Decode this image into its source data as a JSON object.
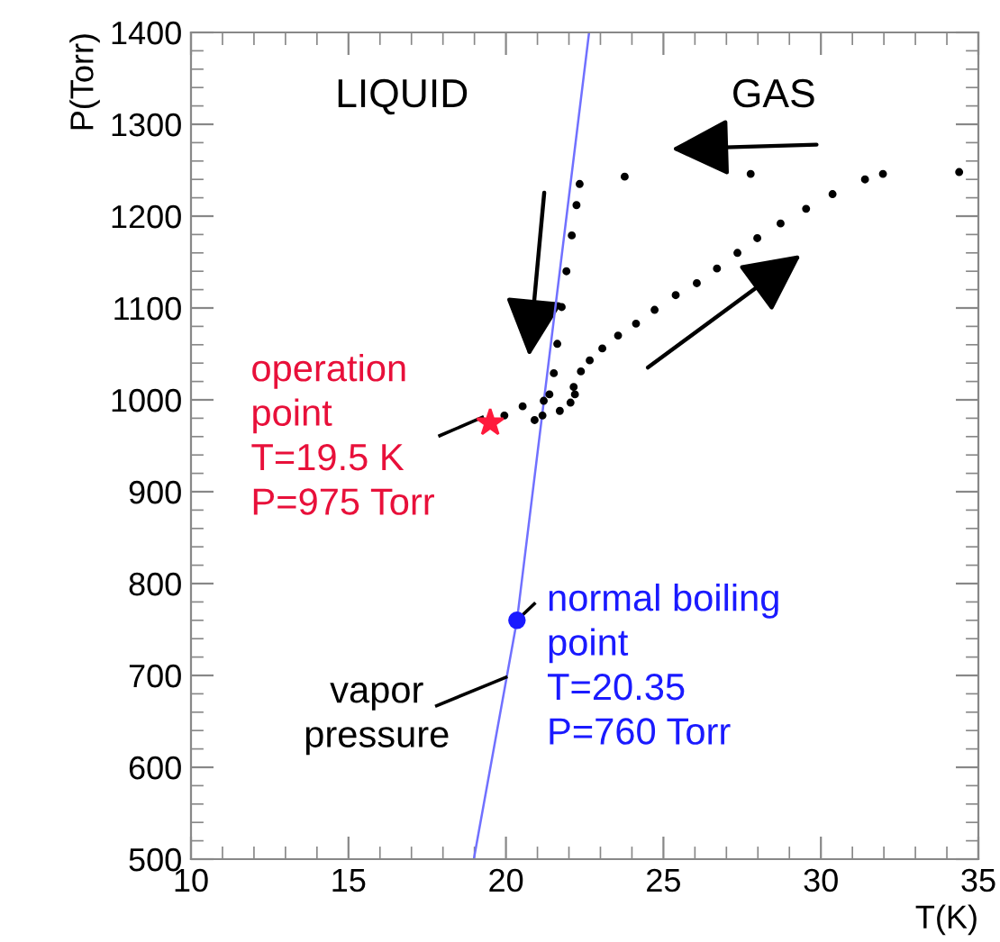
{
  "chart_data": {
    "type": "scatter",
    "xlabel": "T(K)",
    "ylabel": "P(Torr)",
    "xlim": [
      10,
      35
    ],
    "ylim": [
      500,
      1400
    ],
    "xticks": [
      10,
      15,
      20,
      25,
      30,
      35
    ],
    "yticks": [
      500,
      600,
      700,
      800,
      900,
      1000,
      1100,
      1200,
      1300,
      1400
    ],
    "grid": false,
    "series": [
      {
        "type": "line",
        "color": "#7070ff",
        "marker": "none",
        "x": [
          18.98,
          20.35,
          22.64
        ],
        "values": [
          500,
          760,
          1400
        ]
      },
      {
        "color": "#000000",
        "marker": "circle",
        "x": [
          19.95,
          20.53,
          21.2,
          21.38,
          21.52,
          21.63,
          21.77,
          21.92,
          22.09,
          22.24,
          22.34
        ],
        "values": [
          983,
          993,
          999,
          1006,
          1029,
          1061,
          1101,
          1140,
          1179,
          1212,
          1235
        ]
      },
      {
        "color": "#000000",
        "marker": "circle",
        "x": [
          20.91,
          21.16,
          21.71,
          22.05,
          22.19,
          22.15,
          22.38,
          22.66,
          23.06,
          23.56,
          24.13,
          24.72,
          25.39,
          26.06,
          26.7,
          27.35,
          27.98,
          28.72,
          29.53,
          30.37,
          31.4,
          31.97,
          34.39,
          27.77,
          23.77
        ],
        "values": [
          978,
          983,
          988,
          997,
          1006,
          1014,
          1031,
          1043,
          1056,
          1070,
          1083,
          1098,
          1114,
          1127,
          1143,
          1160,
          1176,
          1192,
          1208,
          1224,
          1240,
          1246,
          1248,
          1246,
          1243
        ]
      },
      {
        "color": "#ff1a3c",
        "marker": "star",
        "x": [
          19.5
        ],
        "values": [
          975
        ]
      },
      {
        "color": "#1a1aff",
        "marker": "circle",
        "x": [
          20.35
        ],
        "values": [
          760
        ]
      }
    ],
    "annotations": [
      "LIQUID",
      "GAS",
      {
        "text": "operation\npoint\nT=19.5 K\nP=975 Torr",
        "x": 19.5,
        "y": 975
      },
      {
        "text": "normal boiling\npoint\nT=20.35\nP=760 Torr",
        "x": 20.35,
        "y": 760
      },
      {
        "text": "vapor\npressure",
        "x": 20.0,
        "y": 698
      }
    ]
  }
}
